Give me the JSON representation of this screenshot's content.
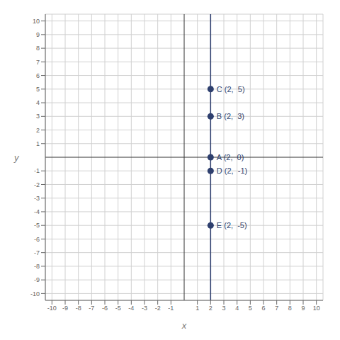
{
  "chart_data": {
    "type": "scatter",
    "xlabel": "x",
    "ylabel": "y",
    "x": [
      2,
      2,
      2,
      2,
      2
    ],
    "values": [
      0,
      3,
      5,
      -1,
      -5
    ],
    "labels": [
      "A (2,  0)",
      "B (2,  3)",
      "C (2,  5)",
      "D (2,  -1)",
      "E (2,  -5)"
    ],
    "vertical_line_x": 2,
    "color": "#2e3f6e",
    "xlim": [
      -10.5,
      10.5
    ],
    "ylim": [
      -10.5,
      10.5
    ],
    "xticks": [
      -10,
      -9,
      -8,
      -7,
      -6,
      -5,
      -4,
      -3,
      -2,
      -1,
      1,
      2,
      3,
      4,
      5,
      6,
      7,
      8,
      9,
      10
    ],
    "yticks": [
      -10,
      -9,
      -8,
      -7,
      -6,
      -5,
      -4,
      -3,
      -2,
      -1,
      1,
      2,
      3,
      4,
      5,
      6,
      7,
      8,
      9,
      10
    ],
    "grid": true
  }
}
